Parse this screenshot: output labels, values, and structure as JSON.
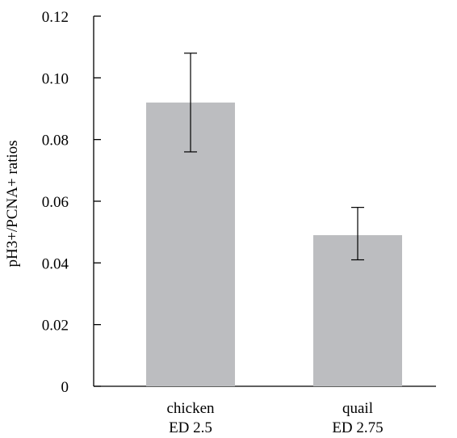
{
  "chart_data": {
    "type": "bar",
    "categories": [
      [
        "chicken",
        "ED 2.5"
      ],
      [
        "quail",
        "ED 2.75"
      ]
    ],
    "series": [
      {
        "values": [
          0.092,
          0.049
        ],
        "error_low": [
          0.076,
          0.041
        ],
        "error_high": [
          0.108,
          0.058
        ],
        "color": "#bcbdc0"
      }
    ],
    "ylabel": "pH3+/PCNA+ ratios",
    "xlabel": "",
    "title": "",
    "ylim": [
      0,
      0.12
    ],
    "yticks": [
      "0",
      "0.02",
      "0.04",
      "0.06",
      "0.08",
      "0.10",
      "0.12"
    ],
    "ytick_values": [
      0,
      0.02,
      0.04,
      0.06,
      0.08,
      0.1,
      0.12
    ],
    "grid": false,
    "legend": "none"
  }
}
